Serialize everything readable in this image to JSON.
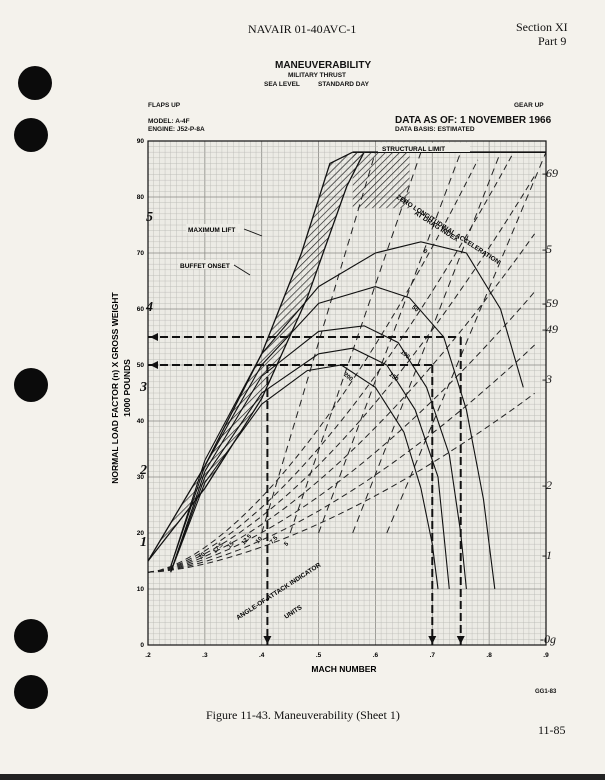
{
  "header": {
    "doc_id": "NAVAIR 01-40AVC-1",
    "section": "Section XI",
    "part": "Part 9"
  },
  "title": {
    "main": "MANEUVERABILITY",
    "sub1": "MILITARY THRUST",
    "sub2a": "SEA LEVEL",
    "sub2b": "STANDARD DAY"
  },
  "conditions": {
    "flaps": "FLAPS UP",
    "gear": "GEAR UP",
    "model": "MODEL: A-4F",
    "engine": "ENGINE: J52-P-8A",
    "data_as_of": "DATA AS OF: 1 NOVEMBER 1966",
    "data_basis": "DATA BASIS: ESTIMATED"
  },
  "figure_caption": "Figure 11-43.   Maneuverability (Sheet 1)",
  "figure_code": "GG1-83",
  "page_number": "11-85",
  "chart_data": {
    "type": "line",
    "xlabel": "MACH NUMBER",
    "ylabel": "NORMAL LOAD FACTOR (n) X GROSS WEIGHT",
    "ylabel2": "1000 POUNDS",
    "xlim": [
      0.2,
      0.9
    ],
    "ylim": [
      0,
      90
    ],
    "x_ticks": [
      ".2",
      ".3",
      ".4",
      ".5",
      ".6",
      ".7",
      ".8",
      ".9"
    ],
    "y_ticks": [
      "0",
      "10",
      "20",
      "30",
      "40",
      "50",
      "60",
      "70",
      "80",
      "90"
    ],
    "grid": true,
    "annotations": {
      "structural_limit": "STRUCTURAL LIMIT",
      "maximum_lift": "MAXIMUM LIFT",
      "buffet_onset": "BUFFET ONSET",
      "zero_accel": "ZERO LONGITUDINAL ACCELERATION",
      "drag_index": "AT DRAG INDEX",
      "aoa_indicator": "ANGLE-OF-ATTACK INDICATOR",
      "aoa_units": "UNITS"
    },
    "structural_limit_value": 88,
    "maximum_lift_curve": [
      [
        0.2,
        15
      ],
      [
        0.3,
        32
      ],
      [
        0.4,
        52
      ],
      [
        0.47,
        70
      ],
      [
        0.52,
        86
      ],
      [
        0.56,
        88
      ]
    ],
    "buffet_onset_curve": [
      [
        0.2,
        15
      ],
      [
        0.3,
        28
      ],
      [
        0.4,
        44
      ],
      [
        0.48,
        62
      ],
      [
        0.55,
        82
      ],
      [
        0.58,
        88
      ]
    ],
    "drag_index_curves": [
      {
        "name": "0",
        "label_x": 0.72,
        "points": [
          [
            0.24,
            14
          ],
          [
            0.3,
            33
          ],
          [
            0.4,
            52
          ],
          [
            0.5,
            64
          ],
          [
            0.6,
            70
          ],
          [
            0.68,
            72
          ],
          [
            0.76,
            70
          ],
          [
            0.82,
            60
          ],
          [
            0.86,
            46
          ]
        ]
      },
      {
        "name": "50",
        "label_x": 0.67,
        "points": [
          [
            0.24,
            14
          ],
          [
            0.3,
            32
          ],
          [
            0.4,
            50
          ],
          [
            0.5,
            61
          ],
          [
            0.6,
            64
          ],
          [
            0.66,
            62
          ],
          [
            0.72,
            55
          ],
          [
            0.76,
            42
          ],
          [
            0.79,
            26
          ],
          [
            0.81,
            10
          ]
        ]
      },
      {
        "name": "100",
        "label_x": 0.63,
        "points": [
          [
            0.24,
            13
          ],
          [
            0.3,
            31
          ],
          [
            0.4,
            48
          ],
          [
            0.5,
            56
          ],
          [
            0.58,
            57
          ],
          [
            0.64,
            54
          ],
          [
            0.69,
            46
          ],
          [
            0.73,
            34
          ],
          [
            0.75,
            20
          ],
          [
            0.76,
            10
          ]
        ]
      },
      {
        "name": "150",
        "label_x": 0.6,
        "points": [
          [
            0.24,
            13
          ],
          [
            0.3,
            30
          ],
          [
            0.4,
            45
          ],
          [
            0.5,
            52
          ],
          [
            0.56,
            53
          ],
          [
            0.62,
            50
          ],
          [
            0.67,
            42
          ],
          [
            0.71,
            30
          ],
          [
            0.72,
            20
          ],
          [
            0.73,
            10
          ]
        ]
      },
      {
        "name": "200",
        "label_x": 0.57,
        "points": [
          [
            0.24,
            13
          ],
          [
            0.3,
            29
          ],
          [
            0.4,
            43
          ],
          [
            0.48,
            49
          ],
          [
            0.54,
            50
          ],
          [
            0.6,
            46
          ],
          [
            0.65,
            38
          ],
          [
            0.68,
            28
          ],
          [
            0.7,
            18
          ],
          [
            0.71,
            10
          ]
        ]
      }
    ],
    "aoa_lines": [
      {
        "label": "20",
        "slope": 110
      },
      {
        "label": "17.5",
        "slope": 95
      },
      {
        "label": "15",
        "slope": 82
      },
      {
        "label": "12.5",
        "slope": 70
      },
      {
        "label": "10",
        "slope": 58
      },
      {
        "label": "7.5",
        "slope": 47
      },
      {
        "label": "5",
        "slope": 37
      }
    ],
    "accel_dashed_lines": [
      [
        0.4,
        0.6
      ],
      [
        0.45,
        0.68
      ],
      [
        0.5,
        0.75
      ],
      [
        0.56,
        0.82
      ],
      [
        0.62,
        0.9
      ]
    ],
    "example_lines": {
      "h55": 55,
      "h50": 50,
      "v1": 0.41,
      "v2": 0.7,
      "v3": 0.75
    }
  },
  "handwriting": {
    "left": [
      "5",
      "4",
      "3",
      "2",
      "1"
    ],
    "right": [
      "-69",
      "-5",
      "-59",
      "-49",
      "-3",
      "-2",
      "-1",
      "-0g"
    ]
  }
}
